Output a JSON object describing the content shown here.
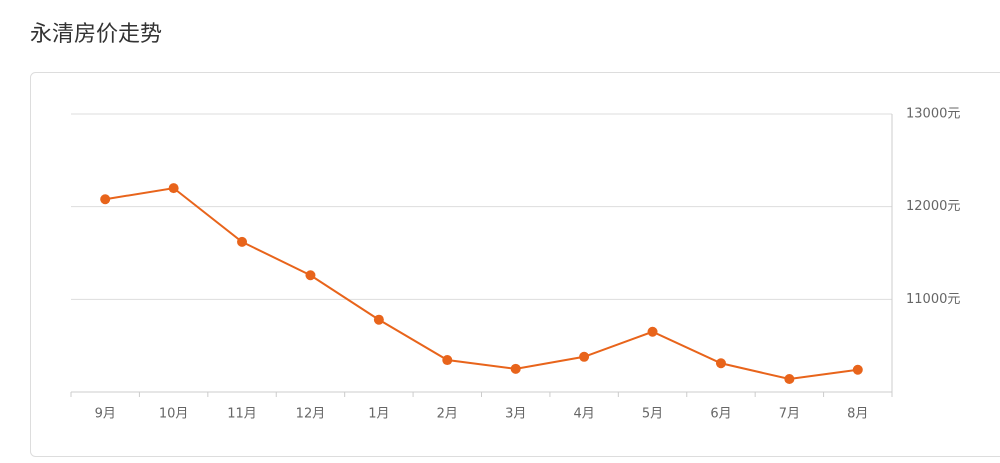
{
  "chart_data": {
    "type": "line",
    "title": "永清房价走势",
    "categories": [
      "9月",
      "10月",
      "11月",
      "12月",
      "1月",
      "2月",
      "3月",
      "4月",
      "5月",
      "6月",
      "7月",
      "8月"
    ],
    "values": [
      12080,
      12200,
      11620,
      11260,
      10780,
      10345,
      10250,
      10380,
      10650,
      10310,
      10140,
      10240
    ],
    "color": "#e8641b",
    "ylim": [
      10000,
      13000
    ],
    "yticks": [
      {
        "value": 11000,
        "label": "11000元"
      },
      {
        "value": 12000,
        "label": "12000元"
      },
      {
        "value": 13000,
        "label": "13000元"
      }
    ],
    "grid": true
  }
}
